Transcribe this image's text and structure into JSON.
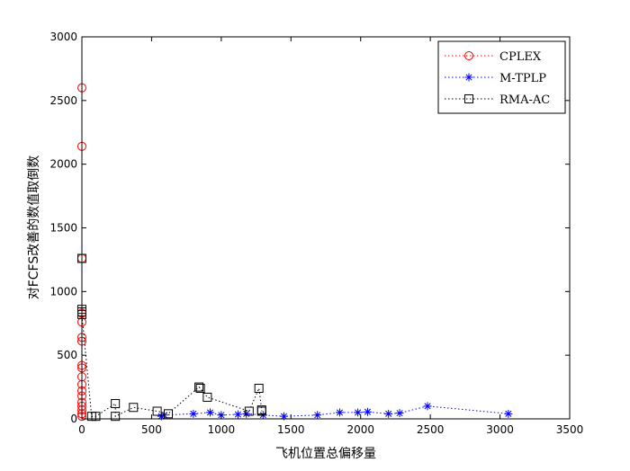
{
  "chart_data": {
    "type": "scatter",
    "xlabel": "飞机位置总偏移量",
    "ylabel": "对FCFS改善的数值取倒数",
    "xlim": [
      0,
      3500
    ],
    "ylim": [
      0,
      3000
    ],
    "xticks": [
      0,
      500,
      1000,
      1500,
      2000,
      2500,
      3000,
      3500
    ],
    "yticks": [
      0,
      500,
      1000,
      1500,
      2000,
      2500,
      3000
    ],
    "grid": false,
    "legend_position": "top-right",
    "series": [
      {
        "name": "CPLEX",
        "color": "#ff0000",
        "marker": "circle",
        "line_style": "dotted",
        "points": [
          [
            0,
            2600
          ],
          [
            0,
            2140
          ],
          [
            0,
            1260
          ],
          [
            0,
            830
          ],
          [
            0,
            760
          ],
          [
            0,
            640
          ],
          [
            0,
            610
          ],
          [
            0,
            420
          ],
          [
            0,
            400
          ],
          [
            0,
            330
          ],
          [
            0,
            270
          ],
          [
            0,
            220
          ],
          [
            0,
            180
          ],
          [
            0,
            130
          ],
          [
            0,
            100
          ],
          [
            0,
            70
          ],
          [
            0,
            40
          ],
          [
            0,
            20
          ]
        ]
      },
      {
        "name": "M-TPLP",
        "color": "#0000ff",
        "marker": "star",
        "line_style": "dotted",
        "points": [
          [
            570,
            20
          ],
          [
            590,
            30
          ],
          [
            800,
            40
          ],
          [
            920,
            50
          ],
          [
            1000,
            30
          ],
          [
            1120,
            35
          ],
          [
            1180,
            40
          ],
          [
            1300,
            30
          ],
          [
            1450,
            20
          ],
          [
            1690,
            30
          ],
          [
            1850,
            50
          ],
          [
            1980,
            50
          ],
          [
            2050,
            55
          ],
          [
            2200,
            40
          ],
          [
            2280,
            45
          ],
          [
            2480,
            100
          ],
          [
            3060,
            40
          ]
        ]
      },
      {
        "name": "RMA-AC",
        "color": "#000000",
        "marker": "square",
        "line_style": "dotted",
        "points": [
          [
            0,
            1260
          ],
          [
            0,
            860
          ],
          [
            0,
            840
          ],
          [
            0,
            820
          ],
          [
            70,
            20
          ],
          [
            100,
            20
          ],
          [
            240,
            120
          ],
          [
            240,
            20
          ],
          [
            370,
            90
          ],
          [
            540,
            60
          ],
          [
            620,
            40
          ],
          [
            840,
            250
          ],
          [
            850,
            240
          ],
          [
            900,
            170
          ],
          [
            1200,
            60
          ],
          [
            1270,
            240
          ],
          [
            1290,
            70
          ],
          [
            1290,
            60
          ]
        ]
      }
    ]
  }
}
